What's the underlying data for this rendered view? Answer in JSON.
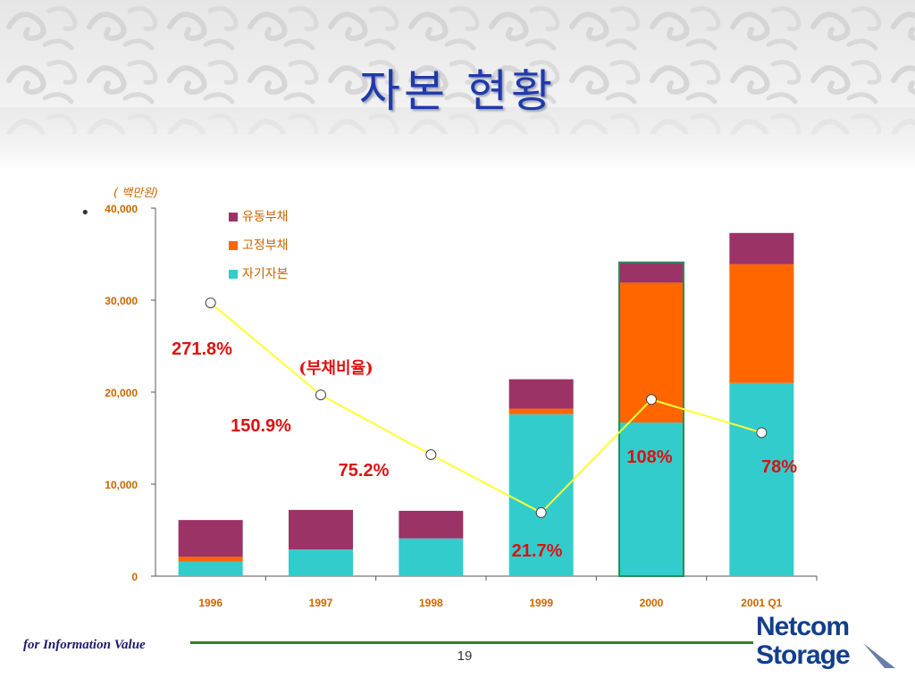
{
  "slide": {
    "title": "자본 현황",
    "bullet": "•",
    "footer_text": "for Information Value",
    "page_number": "19",
    "logo_line1": "Netcom",
    "logo_line2": "Storage"
  },
  "colors": {
    "title": "#1f3aa8",
    "current_liabilities": "#9b3366",
    "fixed_liabilities": "#ff6600",
    "equity": "#33cccc",
    "ratio_line": "#ffff33",
    "axis_text": "#cc6600",
    "ratio_label": "#dd1111",
    "footer_line": "#3c7d1e",
    "logo": "#123e8c"
  },
  "chart_data": {
    "type": "bar",
    "stacked": true,
    "unit_label": "( 백만원)",
    "categories": [
      "1996",
      "1997",
      "1998",
      "1999",
      "2000",
      "2001 Q1"
    ],
    "ylim": [
      0,
      40000
    ],
    "yticks": [
      "0",
      "10,000",
      "20,000",
      "30,000",
      "40,000"
    ],
    "series": [
      {
        "name": "자기자본",
        "values": [
          1600,
          2900,
          4100,
          17600,
          16700,
          21000
        ]
      },
      {
        "name": "고정부채",
        "values": [
          500,
          0,
          0,
          600,
          15200,
          12900
        ]
      },
      {
        "name": "유동부채",
        "values": [
          4000,
          4300,
          3000,
          3200,
          2200,
          3400
        ]
      }
    ],
    "legend_order": [
      "유동부채",
      "고정부채",
      "자기자본"
    ],
    "legend_position": "top-left",
    "ratio_series": {
      "name": "(부채비율)",
      "plot_values": [
        29700,
        19700,
        13200,
        6900,
        19200,
        15600
      ],
      "labels": [
        "271.8%",
        "150.9%",
        "75.2%",
        "21.7%",
        "108%",
        "78%"
      ]
    },
    "highlighted_category": "2000"
  }
}
